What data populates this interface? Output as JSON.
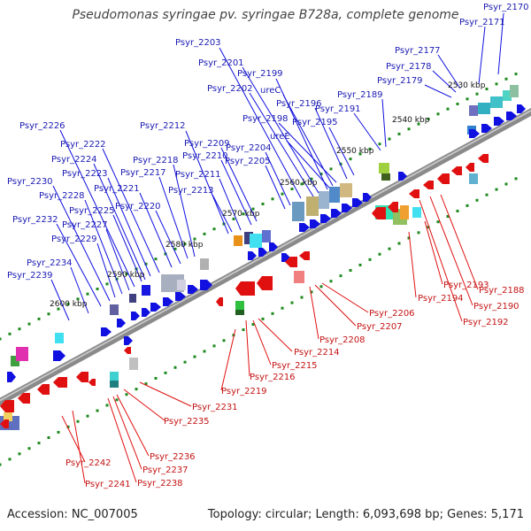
{
  "title": "Pseudomonas syringae pv. syringae B728a, complete genome",
  "accession": "Accession: NC_007005",
  "summary": "Topology: circular; Length: 6,093,698 bp; Genes: 5,171",
  "colors": {
    "forward": "#1010e0",
    "reverse": "#e01010",
    "forward_label": "#1a1ab4",
    "reverse_label": "#c41414",
    "backbone": "#8a8a8a",
    "tick": "#1e8a1e"
  },
  "kbp_labels": [
    "2530 kbp",
    "2540 kbp",
    "2550 kbp",
    "2560 kbp",
    "2570 kbp",
    "2580 kbp",
    "2590 kbp",
    "2600 kbp"
  ],
  "forward_labels": [
    "Psyr_2170",
    "Psyr_2171",
    "Psyr_2177",
    "Psyr_2178",
    "Psyr_2179",
    "Psyr_2189",
    "Psyr_2191",
    "Psyr_2195",
    "Psyr_2196",
    "Psyr_2198",
    "ureC",
    "ureE",
    "Psyr_2199",
    "Psyr_2201",
    "Psyr_2202",
    "Psyr_2203",
    "Psyr_2204",
    "Psyr_2205",
    "Psyr_2209",
    "Psyr_2210",
    "Psyr_2211",
    "Psyr_2212",
    "Psyr_2213",
    "Psyr_2217",
    "Psyr_2218",
    "Psyr_2220",
    "Psyr_2221",
    "Psyr_2222",
    "Psyr_2223",
    "Psyr_2224",
    "Psyr_2225",
    "Psyr_2226",
    "Psyr_2227",
    "Psyr_2228",
    "Psyr_2229",
    "Psyr_2230",
    "Psyr_2232",
    "Psyr_2234",
    "Psyr_2239"
  ],
  "reverse_labels": [
    "Psyr_2188",
    "Psyr_2190",
    "Psyr_2192",
    "Psyr_2193",
    "Psyr_2194",
    "Psyr_2206",
    "Psyr_2207",
    "Psyr_2208",
    "Psyr_2214",
    "Psyr_2215",
    "Psyr_2216",
    "Psyr_2219",
    "Psyr_2231",
    "Psyr_2235",
    "Psyr_2236",
    "Psyr_2237",
    "Psyr_2238",
    "Psyr_2241",
    "Psyr_2242"
  ]
}
